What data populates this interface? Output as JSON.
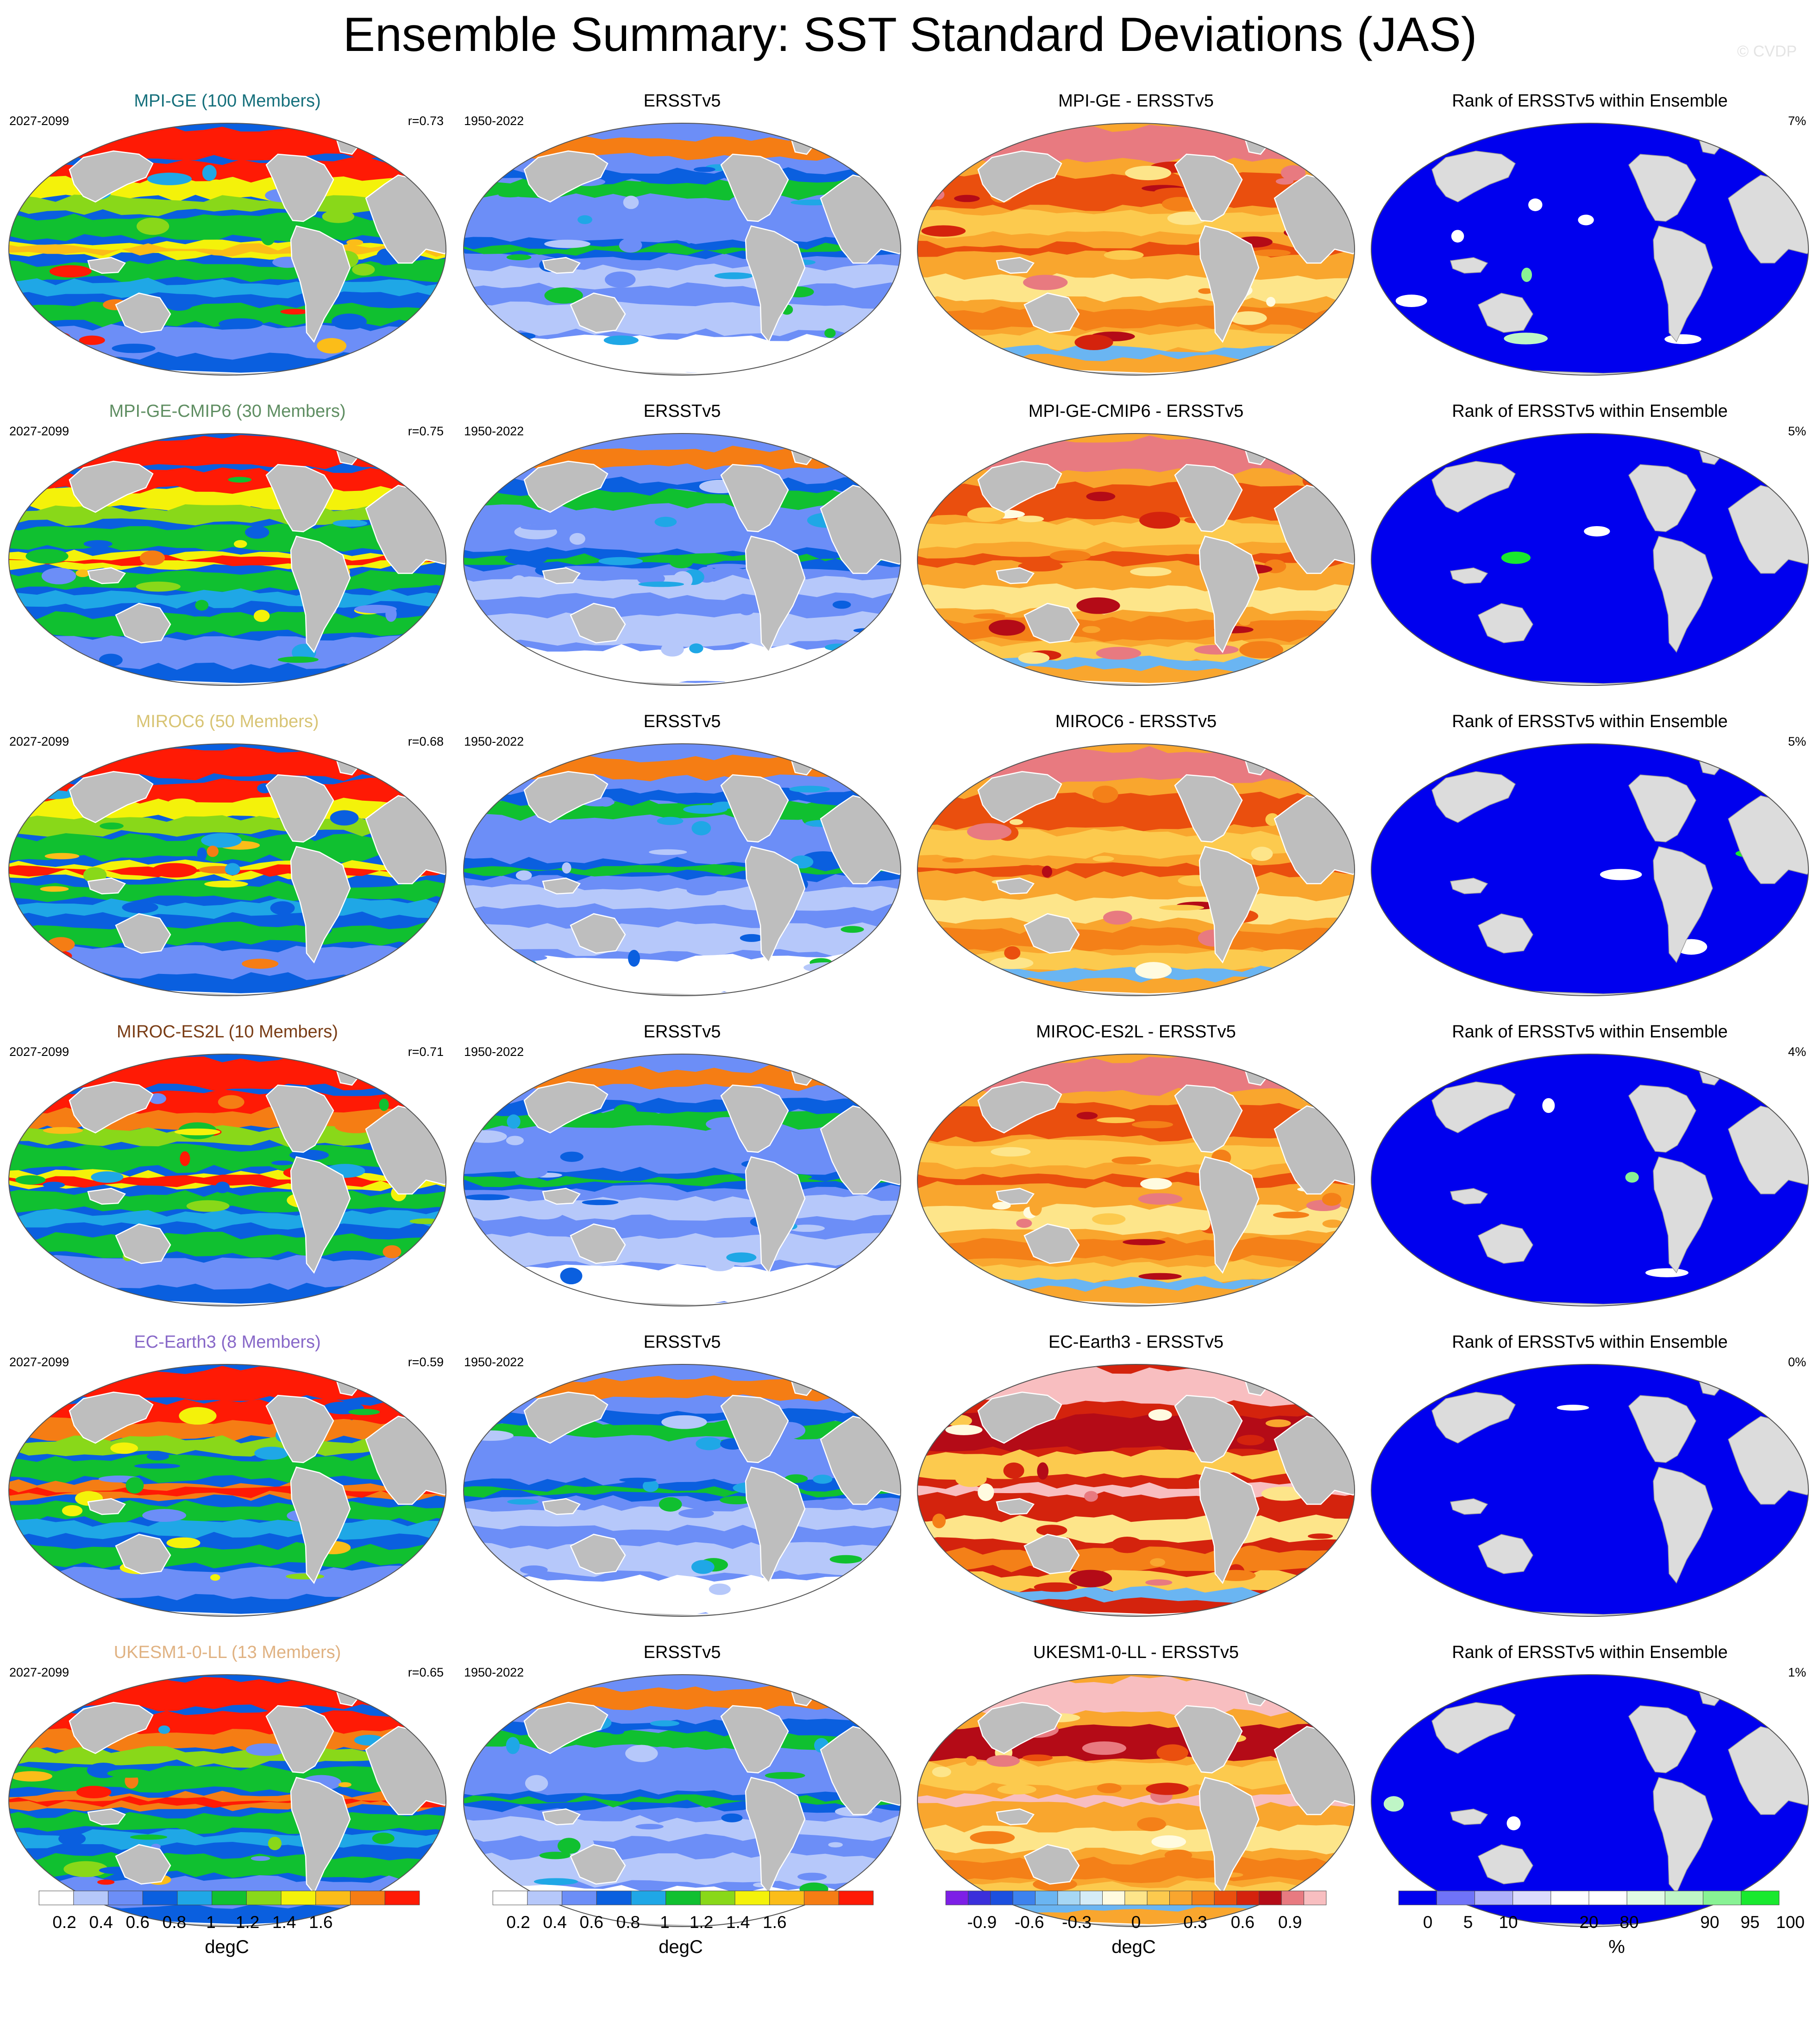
{
  "title": "Ensemble Summary: SST Standard Deviations (JAS)",
  "copyright": "© CVDP",
  "rows": [
    {
      "model": "MPI-GE (100 Members)",
      "model_color": "#16707c",
      "model_period": "2027-2099",
      "r": "r=0.73",
      "obs": "ERSSTv5",
      "obs_period": "1950-2022",
      "diff": "MPI-GE - ERSSTv5",
      "rank": "Rank of ERSSTv5 within Ensemble",
      "rank_pct": "7%",
      "intensity": 0.45,
      "diff_intensity": 0.45,
      "rank_nonblue": 0.12
    },
    {
      "model": "MPI-GE-CMIP6 (30 Members)",
      "model_color": "#5f8e62",
      "model_period": "2027-2099",
      "r": "r=0.75",
      "obs": "ERSSTv5",
      "obs_period": "1950-2022",
      "diff": "MPI-GE-CMIP6 - ERSSTv5",
      "rank": "Rank of ERSSTv5 within Ensemble",
      "rank_pct": "5%",
      "intensity": 0.6,
      "diff_intensity": 0.55,
      "rank_nonblue": 0.08
    },
    {
      "model": "MIROC6 (50 Members)",
      "model_color": "#d8c474",
      "model_period": "2027-2099",
      "r": "r=0.68",
      "obs": "ERSSTv5",
      "obs_period": "1950-2022",
      "diff": "MIROC6 - ERSSTv5",
      "rank": "Rank of ERSSTv5 within Ensemble",
      "rank_pct": "5%",
      "intensity": 0.6,
      "diff_intensity": 0.55,
      "rank_nonblue": 0.07
    },
    {
      "model": "MIROC-ES2L (10 Members)",
      "model_color": "#7a3d16",
      "model_period": "2027-2099",
      "r": "r=0.71",
      "obs": "ERSSTv5",
      "obs_period": "1950-2022",
      "diff": "MIROC-ES2L - ERSSTv5",
      "rank": "Rank of ERSSTv5 within Ensemble",
      "rank_pct": "4%",
      "intensity": 0.65,
      "diff_intensity": 0.6,
      "rank_nonblue": 0.06
    },
    {
      "model": "EC-Earth3 (8 Members)",
      "model_color": "#8868c8",
      "model_period": "2027-2099",
      "r": "r=0.59",
      "obs": "ERSSTv5",
      "obs_period": "1950-2022",
      "diff": "EC-Earth3 - ERSSTv5",
      "rank": "Rank of ERSSTv5 within Ensemble",
      "rank_pct": "0%",
      "intensity": 0.85,
      "diff_intensity": 0.85,
      "rank_nonblue": 0.02
    },
    {
      "model": "UKESM1-0-LL (13 Members)",
      "model_color": "#e0b282",
      "model_period": "2027-2099",
      "r": "r=0.65",
      "obs": "ERSSTv5",
      "obs_period": "1950-2022",
      "diff": "UKESM1-0-LL - ERSSTv5",
      "rank": "Rank of ERSSTv5 within Ensemble",
      "rank_pct": "1%",
      "intensity": 0.8,
      "diff_intensity": 0.75,
      "rank_nonblue": 0.03
    }
  ],
  "colorbars": [
    {
      "unit": "degC",
      "colors": [
        "#ffffff",
        "#b6c8fa",
        "#6c8ef7",
        "#0a5fdf",
        "#1fa7e6",
        "#10c030",
        "#89d819",
        "#f4f20a",
        "#fbbd19",
        "#f57d14",
        "#ff1a05"
      ],
      "ticks": [
        "0.2",
        "0.4",
        "0.6",
        "0.8",
        "1",
        "1.2",
        "1.4",
        "1.6"
      ]
    },
    {
      "unit": "degC",
      "colors": [
        "#ffffff",
        "#b6c8fa",
        "#6c8ef7",
        "#0a5fdf",
        "#1fa7e6",
        "#10c030",
        "#89d819",
        "#f4f20a",
        "#fbbd19",
        "#f57d14",
        "#ff1a05"
      ],
      "ticks": [
        "0.2",
        "0.4",
        "0.6",
        "0.8",
        "1",
        "1.2",
        "1.4",
        "1.6"
      ]
    },
    {
      "unit": "degC",
      "colors": [
        "#7d1fe6",
        "#3b2fdb",
        "#1c4fde",
        "#3d82ee",
        "#6ab5f2",
        "#a7d7f4",
        "#d5ecf7",
        "#fffbe0",
        "#fde58a",
        "#fcca4e",
        "#f9a62e",
        "#f48018",
        "#ea4f0e",
        "#d4230d",
        "#b40b17",
        "#e87a80",
        "#f8bec0"
      ],
      "ticks": [
        "-0.9",
        "-0.6",
        "-0.3",
        "0",
        "0.3",
        "0.6",
        "0.9"
      ]
    },
    {
      "unit": "%",
      "colors": [
        "#0000ee",
        "#6f73f8",
        "#aeb0fb",
        "#dcdcfc",
        "#ffffff",
        "#ffffff",
        "#e1fbe4",
        "#bff6c6",
        "#88f294",
        "#18e92e"
      ],
      "ticks": [
        "0",
        "5",
        "10",
        "20",
        "80",
        "90",
        "95",
        "100"
      ]
    }
  ]
}
